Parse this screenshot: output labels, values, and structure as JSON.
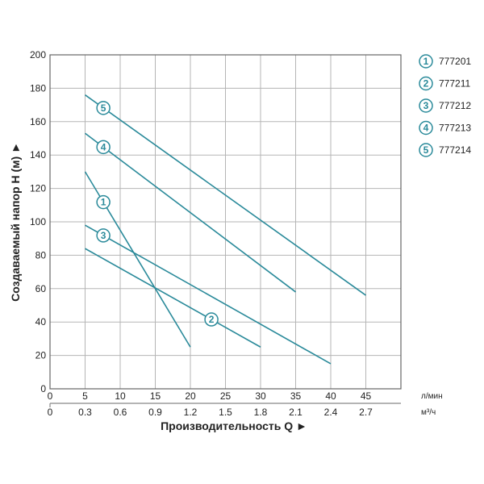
{
  "chart_data": {
    "type": "line",
    "xlabel": "Производительность Q ►",
    "ylabel": "Создаваемый напор H (м) ►",
    "xlim": [
      0,
      50
    ],
    "ylim": [
      0,
      200
    ],
    "grid": true,
    "legend_position": "right",
    "x_ticks": [
      0,
      5,
      10,
      15,
      20,
      25,
      30,
      35,
      40,
      45
    ],
    "x_unit": "л/мин",
    "x2_ticks": [
      "0",
      "0.3",
      "0.6",
      "0.9",
      "1.2",
      "1.5",
      "1.8",
      "2.1",
      "2.4",
      "2.7"
    ],
    "x2_unit": "м³/ч",
    "y_ticks": [
      0,
      20,
      40,
      60,
      80,
      100,
      120,
      140,
      160,
      180,
      200
    ],
    "line_color": "#2a8a9a",
    "series": [
      {
        "label": "1",
        "name": "777201",
        "x": [
          5,
          20
        ],
        "y": [
          130,
          25
        ]
      },
      {
        "label": "2",
        "name": "777211",
        "x": [
          5,
          30
        ],
        "y": [
          84,
          25
        ]
      },
      {
        "label": "3",
        "name": "777212",
        "x": [
          5,
          40
        ],
        "y": [
          98,
          15
        ]
      },
      {
        "label": "4",
        "name": "777213",
        "x": [
          5,
          35
        ],
        "y": [
          153,
          58
        ]
      },
      {
        "label": "5",
        "name": "777214",
        "x": [
          5,
          45
        ],
        "y": [
          176,
          56
        ]
      }
    ]
  }
}
